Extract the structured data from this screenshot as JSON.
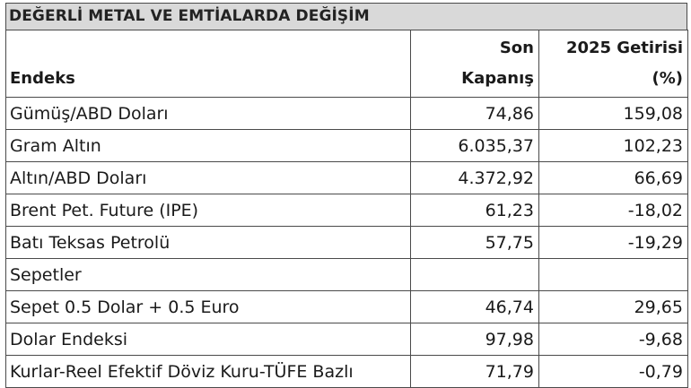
{
  "title": "DEĞERLİ METAL VE EMTİALARDA DEĞİŞİM",
  "header": {
    "col1": "Endeks",
    "col2_line1": "Son",
    "col2_line2": "Kapanış",
    "col3_line1": "2025 Getirisi",
    "col3_line2": "(%)"
  },
  "rows": [
    {
      "name": "Gümüş/ABD Doları",
      "close": "74,86",
      "ret": "159,08"
    },
    {
      "name": "Gram Altın",
      "close": "6.035,37",
      "ret": "102,23"
    },
    {
      "name": "Altın/ABD Doları",
      "close": "4.372,92",
      "ret": "66,69"
    },
    {
      "name": "Brent Pet. Future (IPE)",
      "close": "61,23",
      "ret": "-18,02"
    },
    {
      "name": "Batı Teksas Petrolü",
      "close": "57,75",
      "ret": "-19,29"
    }
  ],
  "group_label": "Sepetler",
  "rows2": [
    {
      "name": "Sepet 0.5 Dolar + 0.5 Euro",
      "close": "46,74",
      "ret": "29,65"
    },
    {
      "name": "Dolar Endeksi",
      "close": "97,98",
      "ret": "-9,68"
    },
    {
      "name": "Kurlar-Reel Efektif Döviz Kuru-TÜFE Bazlı",
      "close": "71,79",
      "ret": "-0,79"
    }
  ]
}
